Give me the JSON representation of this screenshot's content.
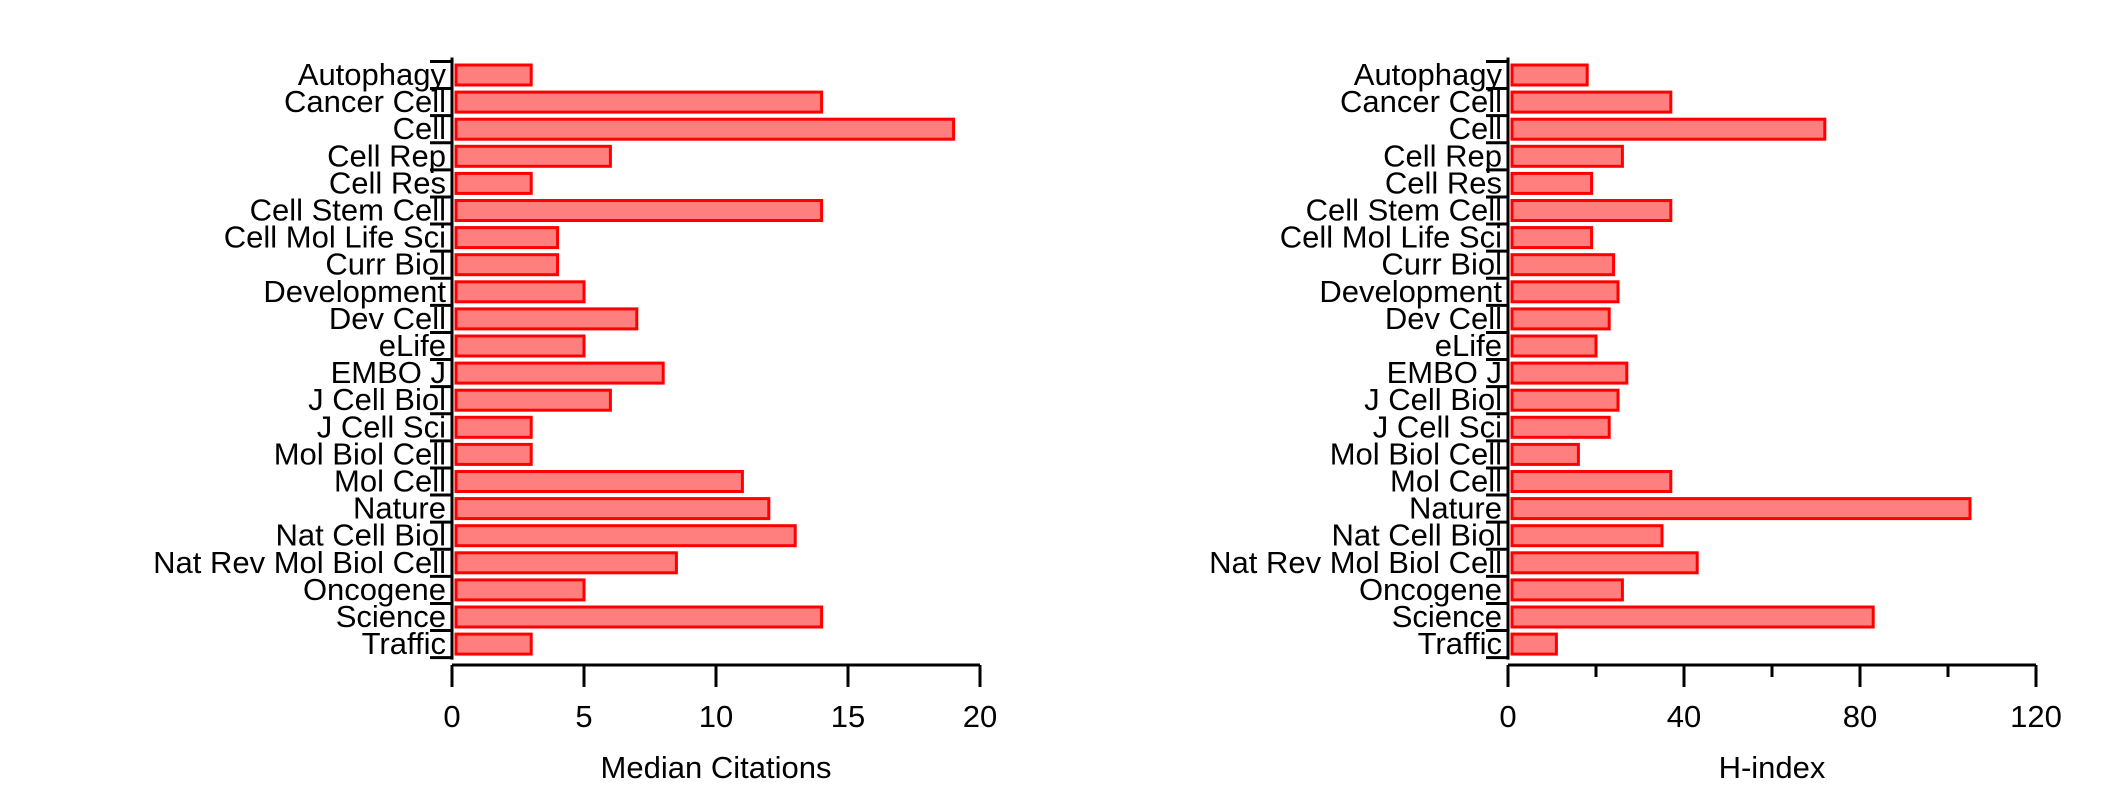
{
  "chart_data": [
    {
      "type": "bar",
      "orientation": "horizontal",
      "categories": [
        "Autophagy",
        "Cancer Cell",
        "Cell",
        "Cell Rep",
        "Cell Res",
        "Cell Stem Cell",
        "Cell Mol Life Sci",
        "Curr Biol",
        "Development",
        "Dev Cell",
        "eLife",
        "EMBO J",
        "J Cell Biol",
        "J Cell Sci",
        "Mol Biol Cell",
        "Mol Cell",
        "Nature",
        "Nat Cell Biol",
        "Nat Rev Mol Biol Cell",
        "Oncogene",
        "Science",
        "Traffic"
      ],
      "values": [
        3,
        14,
        19,
        6,
        3,
        14,
        4,
        4,
        5,
        7,
        5,
        8,
        6,
        3,
        3,
        11,
        12,
        13,
        8.5,
        5,
        14,
        3
      ],
      "xlabel": "Median Citations",
      "xlim": [
        0,
        20
      ],
      "xticks": [
        0,
        5,
        10,
        15,
        20
      ],
      "xtick_labels": [
        "0",
        "5",
        "10",
        "15",
        "20"
      ],
      "bar_fill": "#ff7f7f",
      "bar_stroke": "#ff0000",
      "grid": false
    },
    {
      "type": "bar",
      "orientation": "horizontal",
      "categories": [
        "Autophagy",
        "Cancer Cell",
        "Cell",
        "Cell Rep",
        "Cell Res",
        "Cell Stem Cell",
        "Cell Mol Life Sci",
        "Curr Biol",
        "Development",
        "Dev Cell",
        "eLife",
        "EMBO J",
        "J Cell Biol",
        "J Cell Sci",
        "Mol Biol Cell",
        "Mol Cell",
        "Nature",
        "Nat Cell Biol",
        "Nat Rev Mol Biol Cell",
        "Oncogene",
        "Science",
        "Traffic"
      ],
      "values": [
        18,
        37,
        72,
        26,
        19,
        37,
        19,
        24,
        25,
        23,
        20,
        27,
        25,
        23,
        16,
        37,
        105,
        35,
        43,
        26,
        83,
        11
      ],
      "xlabel": "H-index",
      "xlim": [
        0,
        120
      ],
      "xticks": [
        0,
        40,
        80,
        120
      ],
      "xtick_labels": [
        "0",
        "40",
        "80",
        "120"
      ],
      "xminor": [
        20,
        60,
        100
      ],
      "bar_fill": "#ff7f7f",
      "bar_stroke": "#ff0000",
      "grid": false
    }
  ]
}
